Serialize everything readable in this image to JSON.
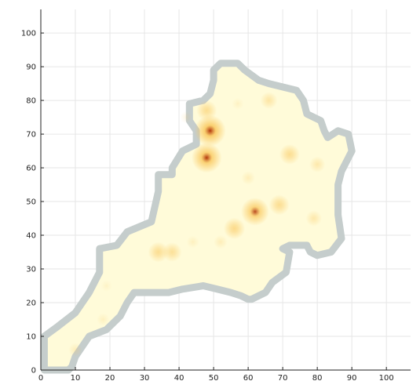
{
  "chart_data": {
    "type": "heatmap",
    "title": "",
    "xlabel": "",
    "ylabel": "",
    "xlim": [
      0,
      107
    ],
    "ylim": [
      0,
      107
    ],
    "x_ticks": [
      "0",
      "10",
      "20",
      "30",
      "40",
      "50",
      "60",
      "70",
      "80",
      "90",
      "100"
    ],
    "y_ticks": [
      "0",
      "10",
      "20",
      "30",
      "40",
      "50",
      "60",
      "70",
      "80",
      "90",
      "100"
    ],
    "grid": true,
    "legend": "none",
    "colors": {
      "boundary": "#c5cdcc",
      "low": "#fffbd9",
      "mid": "#f9c556",
      "high": "#b1350a"
    },
    "region_outline": [
      [
        1,
        0
      ],
      [
        1,
        10
      ],
      [
        5,
        13
      ],
      [
        10,
        17
      ],
      [
        14,
        23
      ],
      [
        17,
        29
      ],
      [
        17,
        36
      ],
      [
        22,
        37
      ],
      [
        25,
        41
      ],
      [
        32,
        44
      ],
      [
        34,
        53
      ],
      [
        34,
        58
      ],
      [
        38,
        58
      ],
      [
        38,
        60
      ],
      [
        41,
        65
      ],
      [
        45,
        67
      ],
      [
        45,
        71
      ],
      [
        43,
        74
      ],
      [
        43,
        79
      ],
      [
        47,
        80
      ],
      [
        49,
        82
      ],
      [
        50,
        86
      ],
      [
        50,
        89
      ],
      [
        52,
        91
      ],
      [
        57,
        91
      ],
      [
        59,
        89
      ],
      [
        63,
        86
      ],
      [
        66,
        85
      ],
      [
        74,
        83
      ],
      [
        76,
        80
      ],
      [
        77,
        76
      ],
      [
        81,
        74
      ],
      [
        82,
        71
      ],
      [
        83,
        69
      ],
      [
        86,
        71
      ],
      [
        89,
        70
      ],
      [
        90,
        65
      ],
      [
        87,
        59
      ],
      [
        86,
        55
      ],
      [
        86,
        46
      ],
      [
        87,
        39
      ],
      [
        84,
        35
      ],
      [
        80,
        34
      ],
      [
        78,
        35
      ],
      [
        77,
        37
      ],
      [
        72,
        37
      ],
      [
        70,
        36
      ],
      [
        72,
        35
      ],
      [
        71,
        29
      ],
      [
        67,
        26
      ],
      [
        65,
        23
      ],
      [
        61,
        21
      ],
      [
        60,
        21
      ],
      [
        58,
        22
      ],
      [
        55,
        23
      ],
      [
        51,
        24
      ],
      [
        47,
        25
      ],
      [
        41,
        24
      ],
      [
        37,
        23
      ],
      [
        35,
        23
      ],
      [
        30,
        23
      ],
      [
        27,
        23
      ],
      [
        25,
        20
      ],
      [
        23,
        16
      ],
      [
        21,
        14
      ],
      [
        19,
        12
      ],
      [
        14,
        10
      ],
      [
        12,
        7
      ],
      [
        10,
        4
      ],
      [
        9,
        1
      ],
      [
        8,
        0
      ]
    ],
    "hotspots": [
      {
        "x": 49,
        "y": 71,
        "value": 1.0
      },
      {
        "x": 48,
        "y": 63,
        "value": 0.95
      },
      {
        "x": 62,
        "y": 47,
        "value": 0.85
      },
      {
        "x": 48,
        "y": 77,
        "value": 0.5
      },
      {
        "x": 56,
        "y": 42,
        "value": 0.55
      },
      {
        "x": 69,
        "y": 49,
        "value": 0.5
      },
      {
        "x": 72,
        "y": 64,
        "value": 0.5
      },
      {
        "x": 34,
        "y": 35,
        "value": 0.5
      },
      {
        "x": 38,
        "y": 35,
        "value": 0.45
      },
      {
        "x": 66,
        "y": 80,
        "value": 0.35
      },
      {
        "x": 80,
        "y": 61,
        "value": 0.3
      },
      {
        "x": 79,
        "y": 45,
        "value": 0.3
      },
      {
        "x": 60,
        "y": 57,
        "value": 0.2
      },
      {
        "x": 52,
        "y": 38,
        "value": 0.2
      },
      {
        "x": 10,
        "y": 6,
        "value": 0.2
      },
      {
        "x": 18,
        "y": 15,
        "value": 0.15
      },
      {
        "x": 57,
        "y": 79,
        "value": 0.12
      },
      {
        "x": 44,
        "y": 38,
        "value": 0.15
      },
      {
        "x": 19,
        "y": 25,
        "value": 0.1
      },
      {
        "x": 42,
        "y": 75,
        "value": 0.12
      }
    ]
  }
}
